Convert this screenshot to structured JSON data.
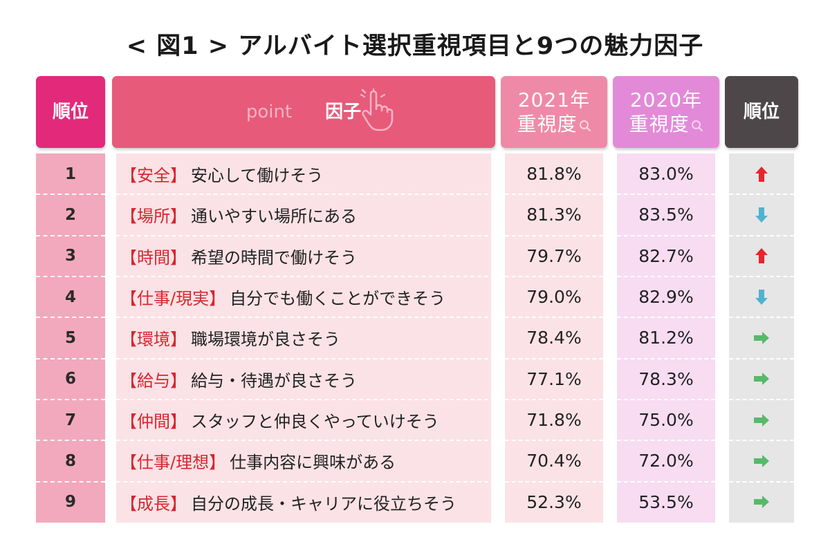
{
  "title": "< 図1 > アルバイト選択重視項目と9つの魅力因子",
  "headers": {
    "rank": "順位",
    "point": "point",
    "factor": "因子",
    "y2021_line1": "2021年",
    "y2021_line2": "重視度",
    "y2020_line1": "2020年",
    "y2020_line2": "重視度",
    "rank_change": "順位"
  },
  "colors": {
    "up": "#e8242c",
    "down": "#4fb3cf",
    "same": "#58b96a"
  },
  "chart_data": {
    "type": "table",
    "columns": [
      "順位",
      "因子",
      "2021年重視度",
      "2020年重視度",
      "順位"
    ],
    "rows": [
      {
        "rank": "1",
        "tag": "【安全】",
        "factor": "安心して働けそう",
        "v2021": "81.8%",
        "v2020": "83.0%",
        "trend": "up"
      },
      {
        "rank": "2",
        "tag": "【場所】",
        "factor": "通いやすい場所にある",
        "v2021": "81.3%",
        "v2020": "83.5%",
        "trend": "down"
      },
      {
        "rank": "3",
        "tag": "【時間】",
        "factor": "希望の時間で働けそう",
        "v2021": "79.7%",
        "v2020": "82.7%",
        "trend": "up"
      },
      {
        "rank": "4",
        "tag": "【仕事/現実】",
        "factor": "自分でも働くことができそう",
        "v2021": "79.0%",
        "v2020": "82.9%",
        "trend": "down"
      },
      {
        "rank": "5",
        "tag": "【環境】",
        "factor": "職場環境が良さそう",
        "v2021": "78.4%",
        "v2020": "81.2%",
        "trend": "same"
      },
      {
        "rank": "6",
        "tag": "【給与】",
        "factor": "給与・待遇が良さそう",
        "v2021": "77.1%",
        "v2020": "78.3%",
        "trend": "same"
      },
      {
        "rank": "7",
        "tag": "【仲間】",
        "factor": "スタッフと仲良くやっていけそう",
        "v2021": "71.8%",
        "v2020": "75.0%",
        "trend": "same"
      },
      {
        "rank": "8",
        "tag": "【仕事/理想】",
        "factor": "仕事内容に興味がある",
        "v2021": "70.4%",
        "v2020": "72.0%",
        "trend": "same"
      },
      {
        "rank": "9",
        "tag": "【成長】",
        "factor": "自分の成長・キャリアに役立ちそう",
        "v2021": "52.3%",
        "v2020": "53.5%",
        "trend": "same"
      }
    ]
  }
}
